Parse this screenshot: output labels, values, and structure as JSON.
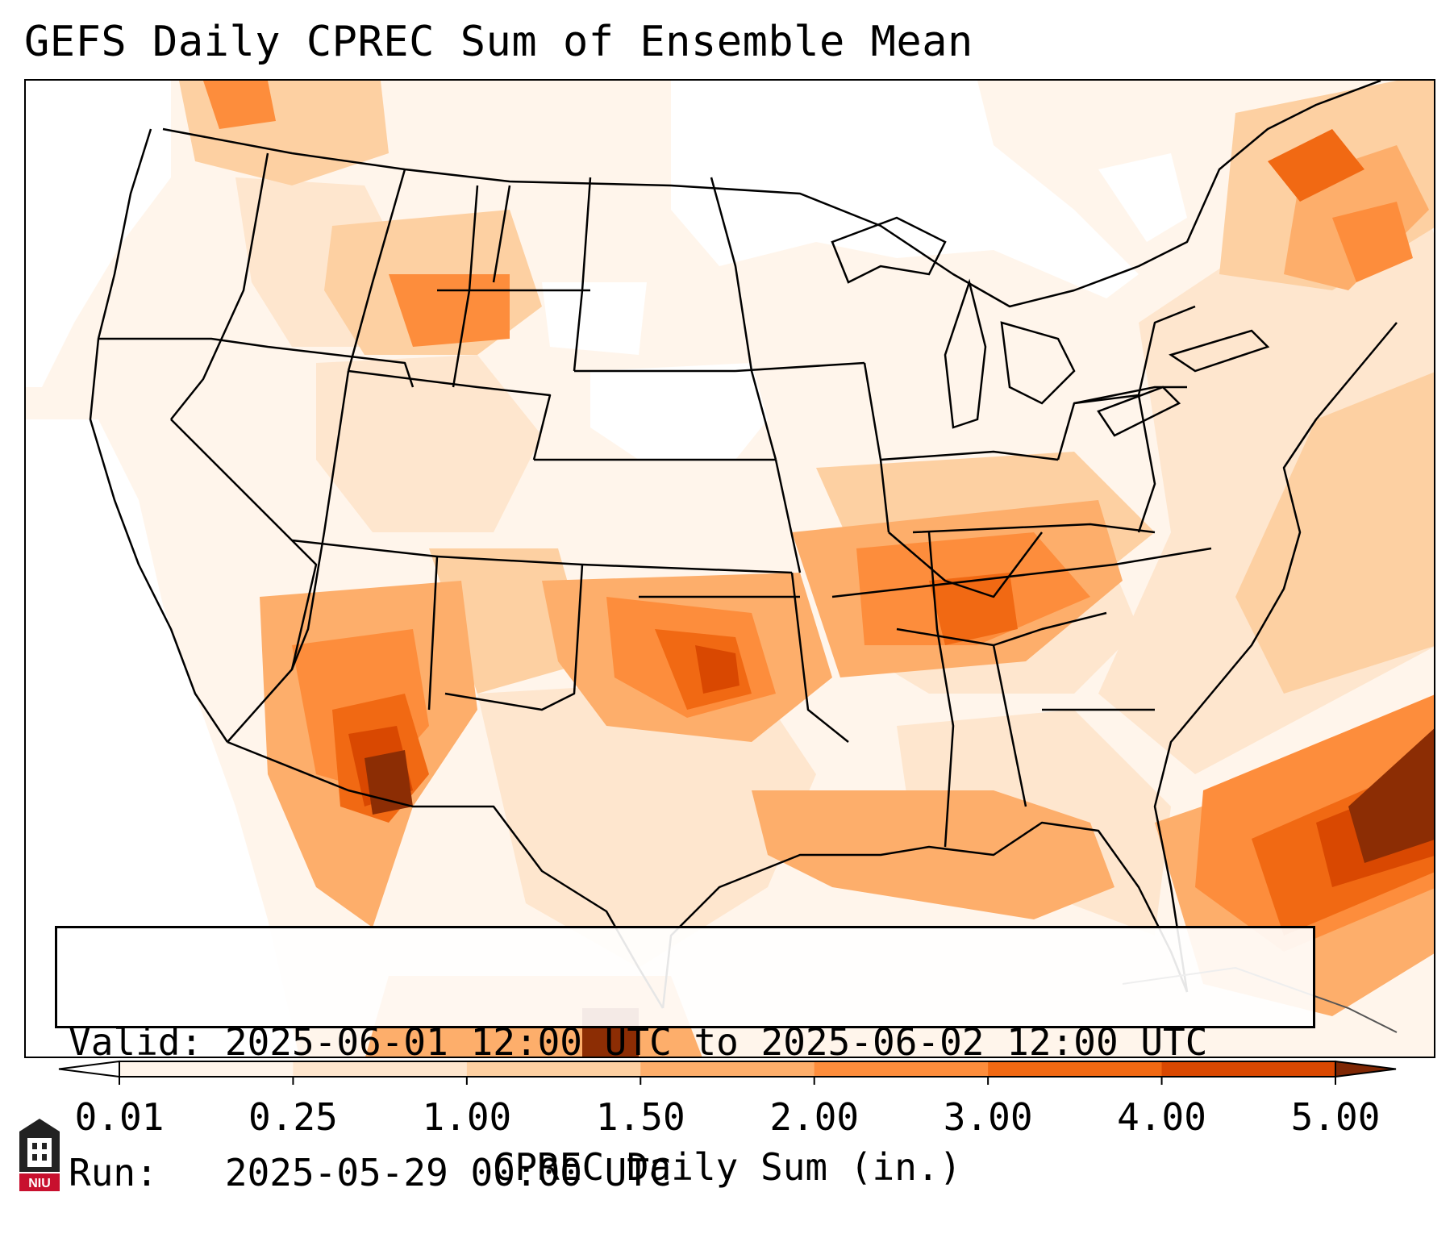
{
  "title": "GEFS Daily CPREC Sum of Ensemble Mean",
  "info": {
    "valid_label": "Valid:",
    "valid_value": "2025-06-01 12:00 UTC to 2025-06-02 12:00 UTC",
    "run_label": "Run:",
    "run_value": "2025-05-29 00:00 UTC"
  },
  "colorbar": {
    "label": "CPREC Daily Sum (in.)",
    "ticks": [
      "0.01",
      "0.25",
      "1.00",
      "1.50",
      "2.00",
      "3.00",
      "4.00",
      "5.00"
    ],
    "colors": [
      "#fff5eb",
      "#fee6ce",
      "#fdd0a2",
      "#fdae6b",
      "#fd8d3c",
      "#f16913",
      "#d94801",
      "#8c2d04"
    ],
    "under_color": "#ffffff",
    "over_color": "#7f2704"
  },
  "map": {
    "region": "Continental United States",
    "background_color": "#fff5eb"
  },
  "logo": {
    "text": "NIU"
  }
}
